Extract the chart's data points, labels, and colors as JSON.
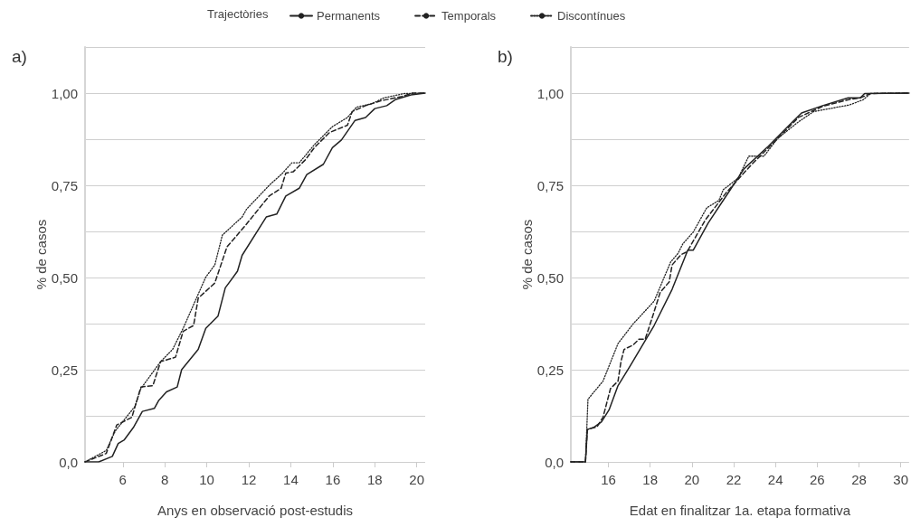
{
  "chart_data": [
    {
      "type": "line",
      "title": "a)",
      "xlabel": "Anys en observació post-estudis",
      "ylabel": "% de casos",
      "legend_title": "Trajectòries",
      "legend": "top",
      "xlim": [
        4.2,
        20.4
      ],
      "xticks": [
        6,
        8,
        10,
        12,
        14,
        16,
        18,
        20
      ],
      "ylim": [
        0,
        1.125
      ],
      "yticks": [
        {
          "value": 0,
          "label": "0,0"
        },
        {
          "value": 0.125,
          "label": null
        },
        {
          "value": 0.25,
          "label": "0,25"
        },
        {
          "value": 0.375,
          "label": null
        },
        {
          "value": 0.5,
          "label": "0,50"
        },
        {
          "value": 0.625,
          "label": null
        },
        {
          "value": 0.75,
          "label": "0,75"
        },
        {
          "value": 0.875,
          "label": null
        },
        {
          "value": 1,
          "label": "1,00"
        },
        {
          "value": 1.125,
          "label": null
        }
      ],
      "grid": "y",
      "series": [
        {
          "name": "Permanents",
          "color": "#222222",
          "line_style": "solid",
          "x": [
            4.2,
            4.85,
            5.5,
            5.78,
            6.07,
            6.5,
            6.93,
            7.5,
            7.7,
            8.08,
            8.59,
            8.8,
            9.59,
            9.95,
            10.53,
            10.88,
            11.46,
            11.68,
            12.83,
            13.33,
            13.76,
            14.4,
            14.76,
            15.55,
            15.98,
            16.41,
            17.06,
            17.56,
            18,
            18.57,
            19,
            19.72,
            20.4
          ],
          "values": [
            0,
            0,
            0.015,
            0.05,
            0.06,
            0.093,
            0.137,
            0.145,
            0.166,
            0.19,
            0.203,
            0.25,
            0.305,
            0.362,
            0.395,
            0.472,
            0.517,
            0.56,
            0.664,
            0.672,
            0.721,
            0.742,
            0.779,
            0.807,
            0.852,
            0.873,
            0.926,
            0.934,
            0.958,
            0.966,
            0.983,
            0.995,
            1
          ]
        },
        {
          "name": "Temporals",
          "color": "#222222",
          "line_style": "dashed",
          "x": [
            4.2,
            5.21,
            5.71,
            6.43,
            6.86,
            7.43,
            7.8,
            8.51,
            8.87,
            9.37,
            9.59,
            10.38,
            10.67,
            10.96,
            11.82,
            12.97,
            13.54,
            13.76,
            14.12,
            14.69,
            15.12,
            15.84,
            16.7,
            16.92,
            17.56,
            18.28,
            19.29,
            19.8,
            20.4
          ],
          "values": [
            0,
            0.023,
            0.1,
            0.121,
            0.203,
            0.207,
            0.272,
            0.284,
            0.354,
            0.37,
            0.444,
            0.485,
            0.534,
            0.583,
            0.64,
            0.721,
            0.742,
            0.783,
            0.787,
            0.819,
            0.852,
            0.893,
            0.913,
            0.95,
            0.966,
            0.979,
            0.991,
            1,
            1
          ]
        },
        {
          "name": "Discontínues",
          "color": "#222222",
          "line_style": "dotted",
          "x": [
            4.2,
            5.21,
            5.64,
            6.57,
            6.86,
            7.8,
            8.37,
            8.87,
            9.95,
            10.38,
            10.74,
            11.68,
            11.89,
            12.97,
            13.54,
            14.05,
            14.4,
            15.12,
            15.98,
            16.7,
            17.13,
            17.85,
            18.43,
            19.43,
            20.4
          ],
          "values": [
            0,
            0.031,
            0.084,
            0.15,
            0.199,
            0.272,
            0.305,
            0.362,
            0.501,
            0.534,
            0.615,
            0.664,
            0.685,
            0.75,
            0.779,
            0.811,
            0.811,
            0.86,
            0.909,
            0.934,
            0.962,
            0.971,
            0.987,
            0.999,
            1
          ]
        }
      ]
    },
    {
      "type": "line",
      "title": "b)",
      "xlabel": "Edat en finalitzar 1a. etapa formativa",
      "ylabel": "% de casos",
      "xlim": [
        14.2,
        30.4
      ],
      "xticks": [
        16,
        18,
        20,
        22,
        24,
        26,
        28,
        30
      ],
      "ylim": [
        0,
        1.125
      ],
      "yticks": [
        {
          "value": 0,
          "label": "0,0"
        },
        {
          "value": 0.125,
          "label": null
        },
        {
          "value": 0.25,
          "label": "0,25"
        },
        {
          "value": 0.375,
          "label": null
        },
        {
          "value": 0.5,
          "label": "0,50"
        },
        {
          "value": 0.625,
          "label": null
        },
        {
          "value": 0.75,
          "label": "0,75"
        },
        {
          "value": 0.875,
          "label": null
        },
        {
          "value": 1,
          "label": "1,00"
        },
        {
          "value": 1.125,
          "label": null
        }
      ],
      "grid": "y",
      "series": [
        {
          "color": "#222222",
          "line_style": "solid",
          "x": [
            14.2,
            14.9,
            14.99,
            15.31,
            15.67,
            16.03,
            16.46,
            17.04,
            18.19,
            19.05,
            19.8,
            20.06,
            20.78,
            21.79,
            22.5,
            23.66,
            24.82,
            25.25,
            26.26,
            27.48,
            28.06,
            28.27,
            30.4
          ],
          "values": [
            0,
            0,
            0.088,
            0.094,
            0.109,
            0.141,
            0.207,
            0.26,
            0.37,
            0.468,
            0.574,
            0.574,
            0.648,
            0.734,
            0.795,
            0.856,
            0.922,
            0.946,
            0.966,
            0.987,
            0.987,
            0.999,
            1
          ]
        },
        {
          "color": "#222222",
          "line_style": "dashed",
          "x": [
            14.2,
            14.9,
            14.99,
            15.45,
            15.74,
            16.1,
            16.46,
            16.6,
            16.75,
            17.18,
            17.47,
            17.76,
            18.12,
            18.48,
            18.91,
            19.05,
            19.48,
            19.77,
            20.64,
            21.64,
            22.8,
            23.81,
            25.1,
            26.26,
            27.55,
            28.06,
            28.56,
            30.4
          ],
          "values": [
            0,
            0,
            0.088,
            0.095,
            0.121,
            0.199,
            0.219,
            0.272,
            0.305,
            0.317,
            0.333,
            0.333,
            0.395,
            0.46,
            0.488,
            0.534,
            0.562,
            0.57,
            0.656,
            0.73,
            0.803,
            0.86,
            0.934,
            0.964,
            0.983,
            0.987,
            0.999,
            1
          ]
        },
        {
          "color": "#222222",
          "line_style": "dotted",
          "x": [
            14.2,
            14.9,
            15.02,
            15.74,
            16.46,
            17.18,
            18.19,
            18.98,
            19.34,
            19.56,
            20.06,
            20.71,
            21.29,
            21.5,
            22.22,
            22.72,
            23.45,
            24.1,
            25.1,
            25.83,
            27.55,
            28.2,
            28.56,
            30.4
          ],
          "values": [
            0,
            0,
            0.17,
            0.219,
            0.321,
            0.374,
            0.436,
            0.542,
            0.566,
            0.591,
            0.623,
            0.689,
            0.709,
            0.738,
            0.77,
            0.829,
            0.829,
            0.877,
            0.922,
            0.95,
            0.968,
            0.982,
            0.999,
            1
          ]
        }
      ]
    }
  ]
}
